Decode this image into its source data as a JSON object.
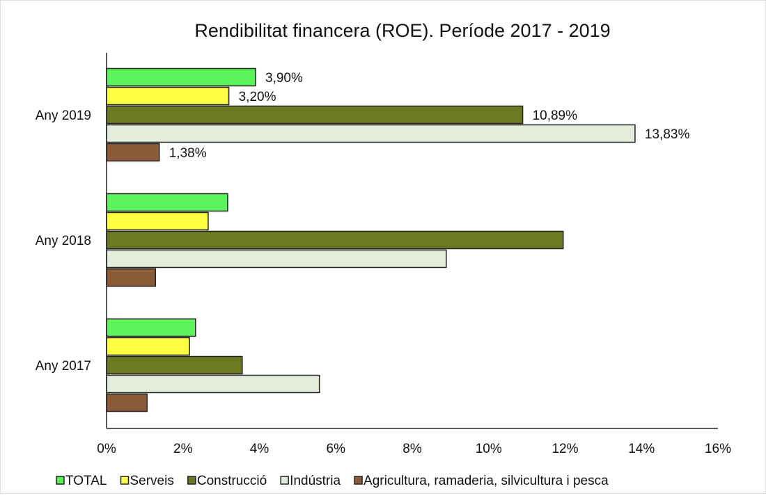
{
  "chart_data": {
    "type": "bar",
    "orientation": "horizontal",
    "title": "Rendibilitat financera (ROE). Període 2017 - 2019",
    "xlabel": "",
    "ylabel": "",
    "xlim": [
      0,
      16
    ],
    "x_ticks": [
      "0%",
      "2%",
      "4%",
      "6%",
      "8%",
      "10%",
      "12%",
      "14%",
      "16%"
    ],
    "categories": [
      "Any 2019",
      "Any 2018",
      "Any 2017"
    ],
    "legend_position": "bottom",
    "grid": false,
    "series": [
      {
        "name": "TOTAL",
        "color": "#5CF25A",
        "values": [
          3.9,
          3.17,
          2.33
        ],
        "labels": [
          "3,90%",
          null,
          null
        ]
      },
      {
        "name": "Serveis",
        "color": "#FFFF44",
        "values": [
          3.2,
          2.66,
          2.17
        ],
        "labels": [
          "3,20%",
          null,
          null
        ]
      },
      {
        "name": "Construcció",
        "color": "#6E7A22",
        "values": [
          10.89,
          11.95,
          3.55
        ],
        "labels": [
          "10,89%",
          null,
          null
        ]
      },
      {
        "name": "Indústria",
        "color": "#E4ECDC",
        "values": [
          13.83,
          8.89,
          5.57
        ],
        "labels": [
          "13,83%",
          null,
          null
        ]
      },
      {
        "name": "Agricultura, ramaderia, silvicultura i pesca",
        "color": "#8B5A36",
        "values": [
          1.38,
          1.28,
          1.06
        ],
        "labels": [
          "1,38%",
          null,
          null
        ]
      }
    ]
  }
}
